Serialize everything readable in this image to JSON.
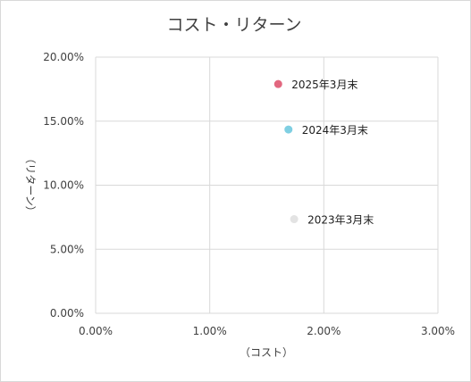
{
  "chart_data": {
    "type": "scatter",
    "title": "コスト・リターン",
    "xlabel": "（コスト）",
    "ylabel": "（リターン）",
    "xlim": [
      0,
      0.03
    ],
    "ylim": [
      0,
      0.2
    ],
    "x_ticks": [
      "0.00%",
      "1.00%",
      "2.00%",
      "3.00%"
    ],
    "y_ticks": [
      "0.00%",
      "5.00%",
      "10.00%",
      "15.00%",
      "20.00%"
    ],
    "grid": true,
    "points": [
      {
        "label": "2025年3月末",
        "x": 0.016,
        "y": 0.179,
        "color": "#e2677f"
      },
      {
        "label": "2024年3月末",
        "x": 0.0169,
        "y": 0.1435,
        "color": "#7fcfe2"
      },
      {
        "label": "2023年3月末",
        "x": 0.0174,
        "y": 0.0735,
        "color": "#e3e3e3"
      }
    ]
  }
}
